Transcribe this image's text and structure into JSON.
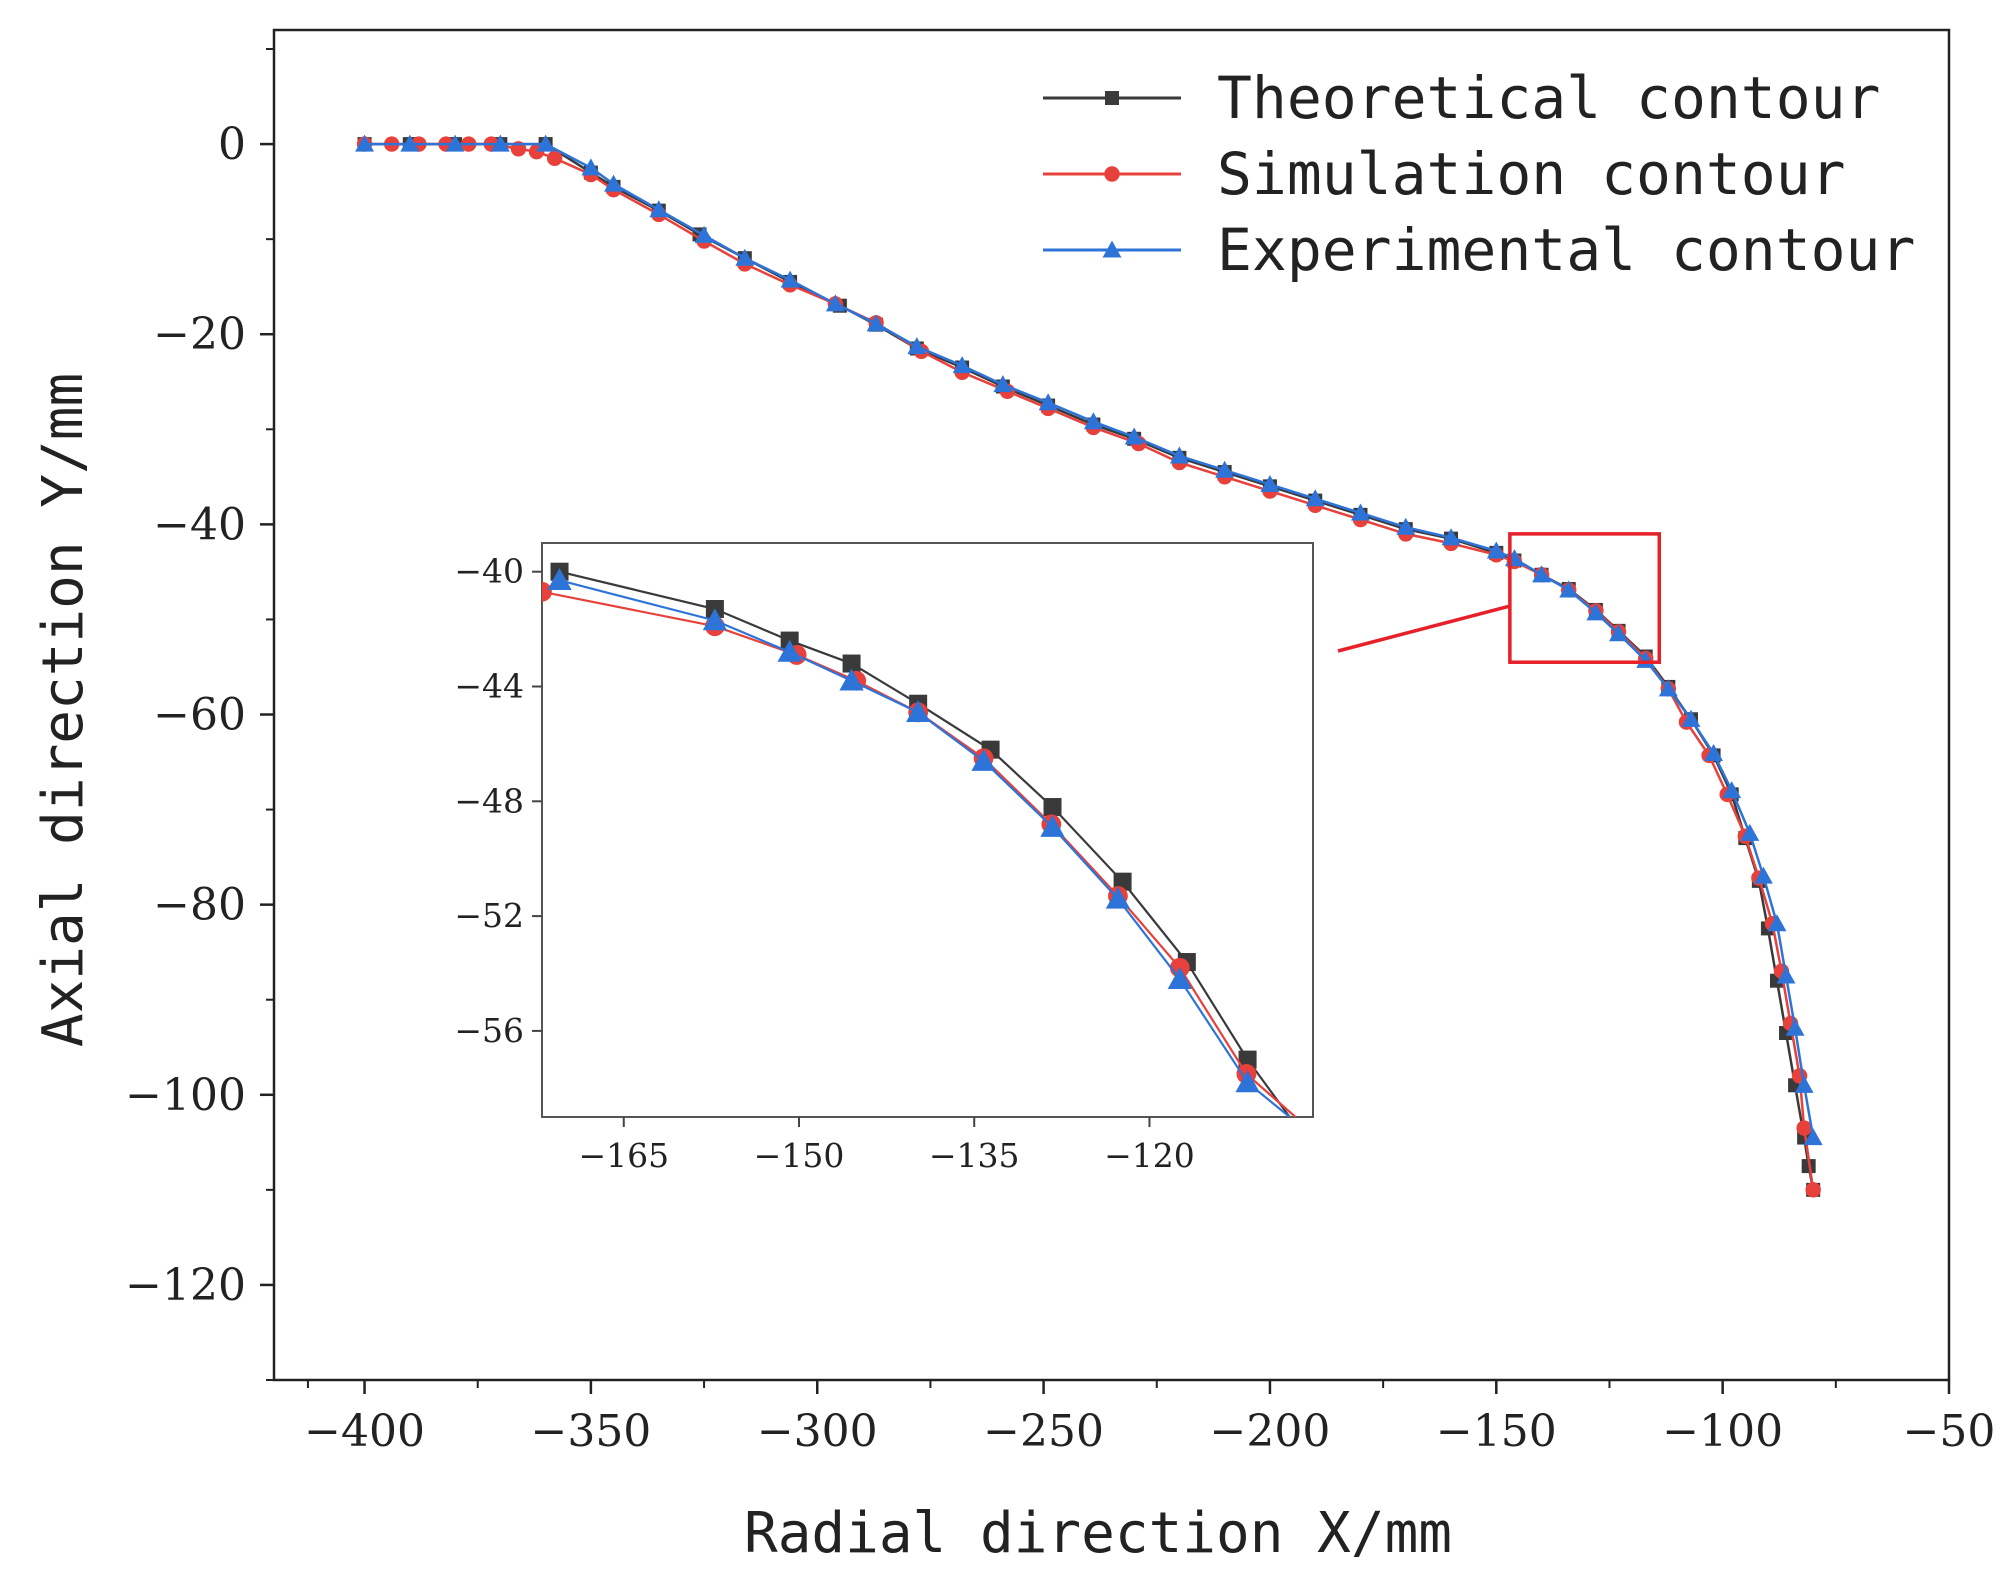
{
  "chart_data": [
    {
      "type": "line",
      "role": "main",
      "xlabel": "Radial direction X/mm",
      "ylabel": "Axial direction Y/mm",
      "xlim": [
        -420,
        -50
      ],
      "ylim": [
        -130,
        12
      ],
      "xticks": [
        -400,
        -350,
        -300,
        -250,
        -200,
        -150,
        -100,
        -50
      ],
      "yticks": [
        0,
        -20,
        -40,
        -60,
        -80,
        -100,
        -120
      ],
      "grid": false,
      "legend_position": "top-right",
      "series": [
        {
          "name": "Theoretical contour",
          "color": "#3a3a3a",
          "marker": "square",
          "x": [
            -400,
            -390,
            -380,
            -370,
            -360,
            -350,
            -345,
            -335,
            -326,
            -316,
            -306,
            -295,
            -287,
            -278,
            -268,
            -259,
            -249,
            -239,
            -230,
            -220,
            -210,
            -200,
            -190,
            -180,
            -170,
            -160,
            -150,
            -146,
            -140,
            -134,
            -128,
            -123,
            -117,
            -112,
            -107,
            -102,
            -98,
            -95,
            -92,
            -90,
            -88,
            -86,
            -84,
            -82,
            -81,
            -80
          ],
          "y": [
            0,
            0,
            0,
            0,
            0,
            -3,
            -4.5,
            -7,
            -9.5,
            -12,
            -14.5,
            -17,
            -19,
            -21.5,
            -23.5,
            -25.5,
            -27.5,
            -29.5,
            -31,
            -33,
            -34.5,
            -36,
            -37.5,
            -39,
            -40.5,
            -41.5,
            -43,
            -43.8,
            -45.3,
            -46.8,
            -49,
            -51.2,
            -53.9,
            -57.1,
            -60.5,
            -64.3,
            -68.4,
            -73,
            -77.5,
            -82.5,
            -88,
            -93.5,
            -99,
            -104.5,
            -107.5,
            -110
          ]
        },
        {
          "name": "Simulation contour",
          "color": "#e8403a",
          "marker": "circle",
          "x": [
            -400,
            -394,
            -388,
            -382,
            -377,
            -372,
            -366,
            -362,
            -358,
            -350,
            -345,
            -335,
            -325,
            -316,
            -306,
            -296,
            -287,
            -277,
            -268,
            -258,
            -249,
            -239,
            -229,
            -220,
            -210,
            -200,
            -190,
            -180,
            -170,
            -160,
            -150,
            -146,
            -140,
            -134,
            -128,
            -123,
            -117,
            -112,
            -108,
            -103,
            -99,
            -95,
            -92,
            -89,
            -87,
            -85,
            -83,
            -82,
            -80
          ],
          "y": [
            0,
            0,
            0,
            0,
            0,
            0,
            -0.5,
            -0.8,
            -1.5,
            -3.2,
            -4.8,
            -7.4,
            -10.2,
            -12.6,
            -14.8,
            -16.8,
            -18.8,
            -21.8,
            -24,
            -26,
            -27.8,
            -29.8,
            -31.5,
            -33.5,
            -35,
            -36.5,
            -38,
            -39.5,
            -41,
            -42,
            -43.2,
            -43.9,
            -45.3,
            -46.9,
            -49.1,
            -51.3,
            -54.1,
            -57.3,
            -60.8,
            -64.3,
            -68.4,
            -72.8,
            -77.2,
            -82,
            -87,
            -92.5,
            -98,
            -103.5,
            -110
          ]
        },
        {
          "name": "Experimental contour",
          "color": "#2e74d8",
          "marker": "triangle",
          "x": [
            -400,
            -390,
            -380,
            -370,
            -360,
            -350,
            -345,
            -335,
            -325,
            -316,
            -306,
            -296,
            -287,
            -278,
            -268,
            -259,
            -249,
            -239,
            -230,
            -220,
            -210,
            -200,
            -190,
            -180,
            -170,
            -160,
            -150,
            -146,
            -140,
            -134,
            -128,
            -123,
            -117,
            -112,
            -107,
            -102,
            -98,
            -94,
            -91,
            -88,
            -86,
            -84,
            -82,
            -80
          ],
          "y": [
            0,
            0,
            0,
            0,
            0,
            -2.5,
            -4.2,
            -6.9,
            -9.6,
            -12,
            -14.3,
            -16.8,
            -18.9,
            -21.3,
            -23.3,
            -25.3,
            -27.2,
            -29.2,
            -30.8,
            -32.8,
            -34.3,
            -35.8,
            -37.3,
            -38.8,
            -40.3,
            -41.4,
            -42.8,
            -43.6,
            -45.3,
            -46.9,
            -49.3,
            -51.5,
            -54.3,
            -57.3,
            -60.5,
            -64.1,
            -68,
            -72.5,
            -77,
            -82,
            -87.5,
            -93,
            -99,
            -104.5
          ]
        }
      ]
    },
    {
      "type": "line",
      "role": "inset",
      "note": "magnified view of the boxed region",
      "xlim": [
        -172,
        -106
      ],
      "ylim": [
        -59,
        -39
      ],
      "xticks": [
        -165,
        -150,
        -135,
        -120
      ],
      "yticks": [
        -40,
        -44,
        -48,
        -52,
        -56
      ],
      "zoom_box": {
        "x": [
          -147,
          -114
        ],
        "y": [
          -41,
          -54.5
        ]
      },
      "series": [
        {
          "name": "Theoretical contour",
          "x": [
            -170.5,
            -157.2,
            -150.8,
            -145.5,
            -139.8,
            -133.6,
            -128.3,
            -122.3,
            -116.8,
            -111.6,
            -108
          ],
          "y": [
            -40,
            -41.3,
            -42.4,
            -43.2,
            -44.6,
            -46.2,
            -48.2,
            -50.8,
            -53.6,
            -57,
            -59
          ]
        },
        {
          "name": "Simulation contour",
          "x": [
            -172,
            -157.2,
            -150.2,
            -145.1,
            -139.8,
            -134.2,
            -128.4,
            -122.7,
            -117.4,
            -111.7,
            -107.5
          ],
          "y": [
            -40.7,
            -41.9,
            -42.9,
            -43.8,
            -44.9,
            -46.5,
            -48.8,
            -51.3,
            -53.8,
            -57.5,
            -59
          ]
        },
        {
          "name": "Experimental contour",
          "x": [
            -170.5,
            -157.2,
            -150.8,
            -145.5,
            -139.8,
            -134.2,
            -128.3,
            -122.7,
            -117.4,
            -111.6,
            -108
          ],
          "y": [
            -40.3,
            -41.7,
            -42.8,
            -43.8,
            -44.9,
            -46.6,
            -48.9,
            -51.4,
            -54.2,
            -57.8,
            -59
          ]
        }
      ]
    }
  ]
}
